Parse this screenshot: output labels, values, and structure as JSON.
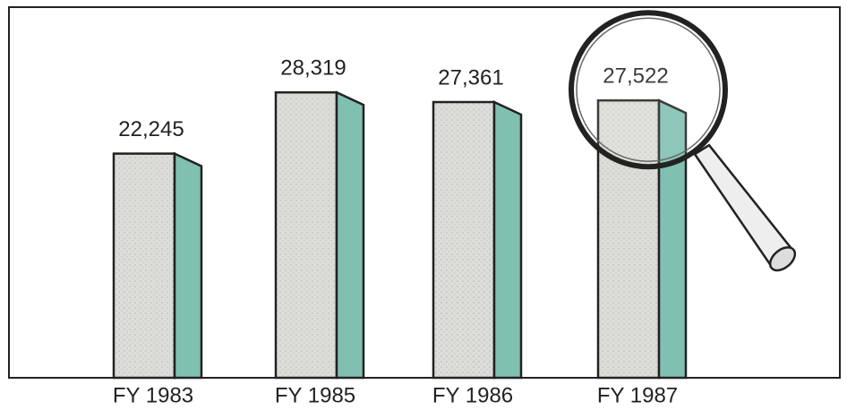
{
  "chart_data": {
    "type": "bar",
    "categories": [
      "FY 1983",
      "FY 1985",
      "FY 1986",
      "FY 1987"
    ],
    "values": [
      22245,
      28319,
      27361,
      27522
    ],
    "value_labels": [
      "22,245",
      "28,319",
      "27,361",
      "27,522"
    ],
    "color": "#d9d9d5",
    "side_color": "#7fc0b1"
  }
}
